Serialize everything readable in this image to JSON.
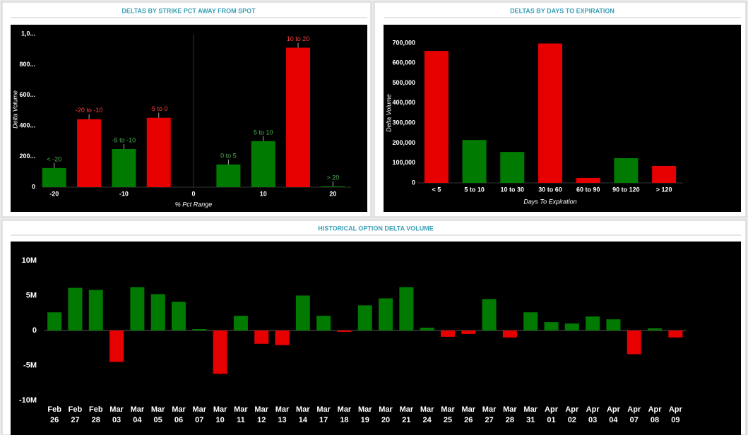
{
  "chart_data": [
    {
      "type": "bar",
      "title": "DELTAS BY STRIKE PCT AWAY FROM SPOT",
      "x": [
        -20,
        -15,
        -10,
        -5,
        5,
        10,
        15,
        20
      ],
      "labels": [
        "< -20",
        "-20 to -10",
        "-5 to -10",
        "-5 to 0",
        "0 to 5",
        "5 to 10",
        "10 to 20",
        "> 20"
      ],
      "values": [
        125,
        443,
        249,
        453,
        148,
        300,
        910,
        5
      ],
      "colors": [
        "#007a00",
        "#e60000",
        "#007a00",
        "#e60000",
        "#007a00",
        "#007a00",
        "#e60000",
        "#007a00"
      ],
      "label_colors": [
        "#4caf50",
        "#ff4040",
        "#4caf50",
        "#ff4040",
        "#4caf50",
        "#4caf50",
        "#ff4040",
        "#4caf50"
      ],
      "xlabel": "% Pct Range",
      "ylabel": "Delta Volume",
      "xlim": [
        -21.7,
        22.6
      ],
      "xticks": [
        -20,
        -10,
        0,
        10,
        20
      ],
      "ylim": [
        0,
        1000
      ],
      "yticks": [
        0,
        {
          "value": 200,
          "label": "200..."
        },
        {
          "value": 400,
          "label": "400..."
        },
        {
          "value": 600,
          "label": "600..."
        },
        {
          "value": 800,
          "label": "800..."
        },
        {
          "value": 1000,
          "label": "1,0..."
        }
      ]
    },
    {
      "type": "bar",
      "title": "DELTAS BY DAYS TO EXPIRATION",
      "categories": [
        "< 5",
        "5 to 10",
        "10 to 30",
        "30 to 60",
        "60 to 90",
        "90 to 120",
        "> 120"
      ],
      "values": [
        661000,
        215000,
        155000,
        698000,
        25000,
        124000,
        85000
      ],
      "colors": [
        "#e60000",
        "#007a00",
        "#007a00",
        "#e60000",
        "#e60000",
        "#007a00",
        "#e60000"
      ],
      "xlabel": "Days To Expiration",
      "ylabel": "Delta Volume",
      "ylim": [
        0,
        700000
      ],
      "yticks": [
        0,
        {
          "value": 100000,
          "label": "100,000"
        },
        {
          "value": 200000,
          "label": "200,000"
        },
        {
          "value": 300000,
          "label": "300,000"
        },
        {
          "value": 400000,
          "label": "400,000"
        },
        {
          "value": 500000,
          "label": "500,000"
        },
        {
          "value": 600000,
          "label": "600,000"
        },
        {
          "value": 700000,
          "label": "700,000"
        }
      ]
    },
    {
      "type": "bar",
      "title": "HISTORICAL OPTION DELTA VOLUME",
      "categories": [
        "Feb 26",
        "Feb 27",
        "Feb 28",
        "Mar 03",
        "Mar 04",
        "Mar 05",
        "Mar 06",
        "Mar 07",
        "Mar 10",
        "Mar 11",
        "Mar 12",
        "Mar 13",
        "Mar 14",
        "Mar 17",
        "Mar 18",
        "Mar 19",
        "Mar 20",
        "Mar 21",
        "Mar 24",
        "Mar 25",
        "Mar 26",
        "Mar 27",
        "Mar 28",
        "Mar 31",
        "Apr 01",
        "Apr 02",
        "Apr 03",
        "Apr 04",
        "Apr 07",
        "Apr 08",
        "Apr 09"
      ],
      "values": [
        2600000,
        6100000,
        5800000,
        -4500000,
        6200000,
        5200000,
        4100000,
        200000,
        -6200000,
        2100000,
        -1900000,
        -2100000,
        5000000,
        2100000,
        -200000,
        3600000,
        4600000,
        6200000,
        400000,
        -900000,
        -500000,
        4500000,
        -1000000,
        2600000,
        1200000,
        1000000,
        2000000,
        1600000,
        -3400000,
        300000,
        -1000000
      ],
      "positive_color": "#007a00",
      "negative_color": "#e60000",
      "ylim": [
        -10000000,
        10000000
      ],
      "yticks": [
        {
          "value": -10000000,
          "label": "-10M"
        },
        {
          "value": -5000000,
          "label": "-5M"
        },
        0,
        {
          "value": 5000000,
          "label": "5M"
        },
        {
          "value": 10000000,
          "label": "10M"
        }
      ]
    }
  ]
}
